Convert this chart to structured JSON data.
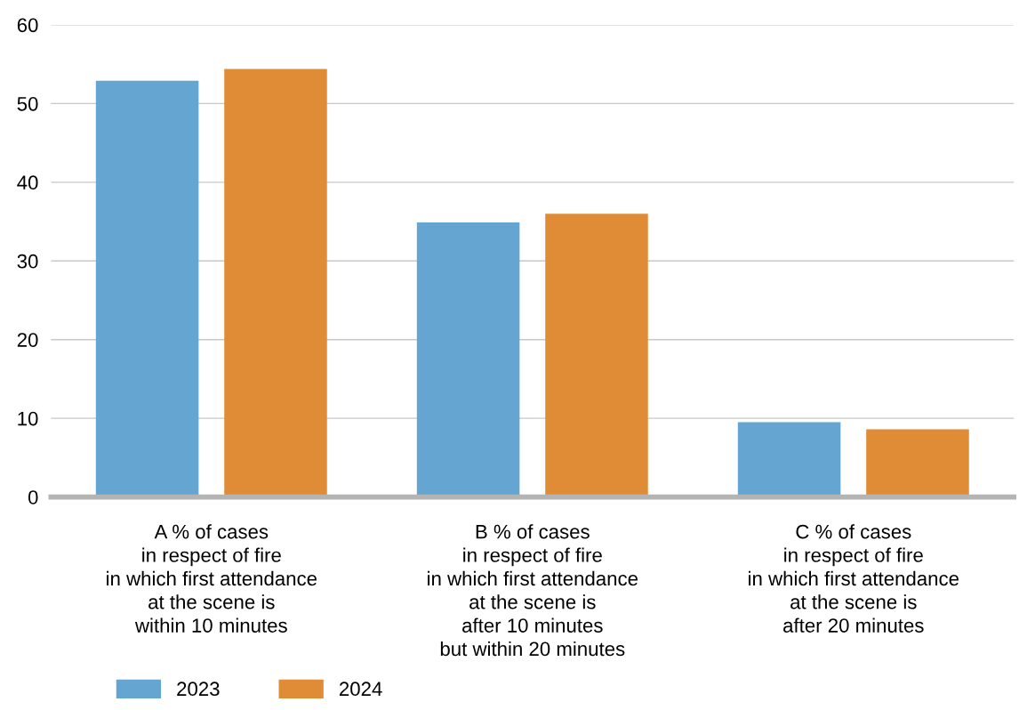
{
  "chart_data": {
    "type": "bar",
    "categories": [
      "A % of cases\nin respect of fire\nin which first attendance\nat the scene is\nwithin 10 minutes",
      "B % of cases\nin respect of fire\nin which first attendance\nat the scene is\nafter 10 minutes\nbut within 20 minutes",
      "C % of cases\nin respect of fire\nin which first attendance\nat the scene is\nafter 20 minutes"
    ],
    "series": [
      {
        "name": "2023",
        "color": "#64a5d2",
        "values": [
          52.9,
          34.9,
          9.5
        ]
      },
      {
        "name": "2024",
        "color": "#e08b35",
        "values": [
          54.4,
          36.0,
          8.6
        ]
      }
    ],
    "ylim": [
      0,
      60
    ],
    "yticks": [
      0,
      10,
      20,
      30,
      40,
      50,
      60
    ],
    "grid": "y",
    "legend": "bottom left"
  }
}
